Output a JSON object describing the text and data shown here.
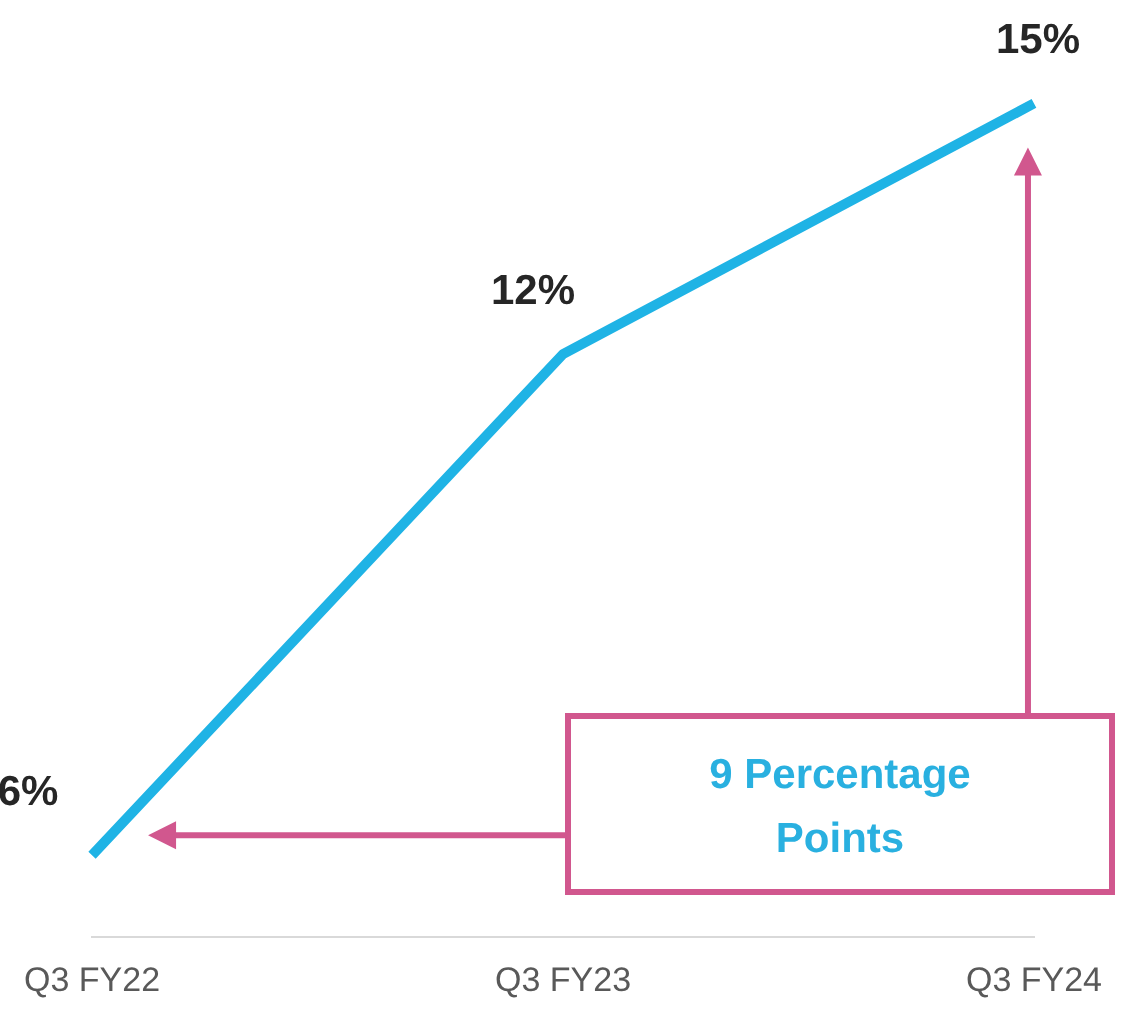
{
  "chart_data": {
    "type": "line",
    "categories": [
      "Q3 FY22",
      "Q3 FY23",
      "Q3 FY24"
    ],
    "series": [
      {
        "color": "#1fb3e5",
        "values": [
          6,
          12,
          15
        ],
        "value_labels": [
          "6%",
          "12%",
          "15%"
        ]
      }
    ],
    "tick_labels": "x",
    "grid": false,
    "legend": false,
    "marker": "none",
    "line_style": "solid",
    "annotations": [
      "9 Percentage Points"
    ]
  }
}
